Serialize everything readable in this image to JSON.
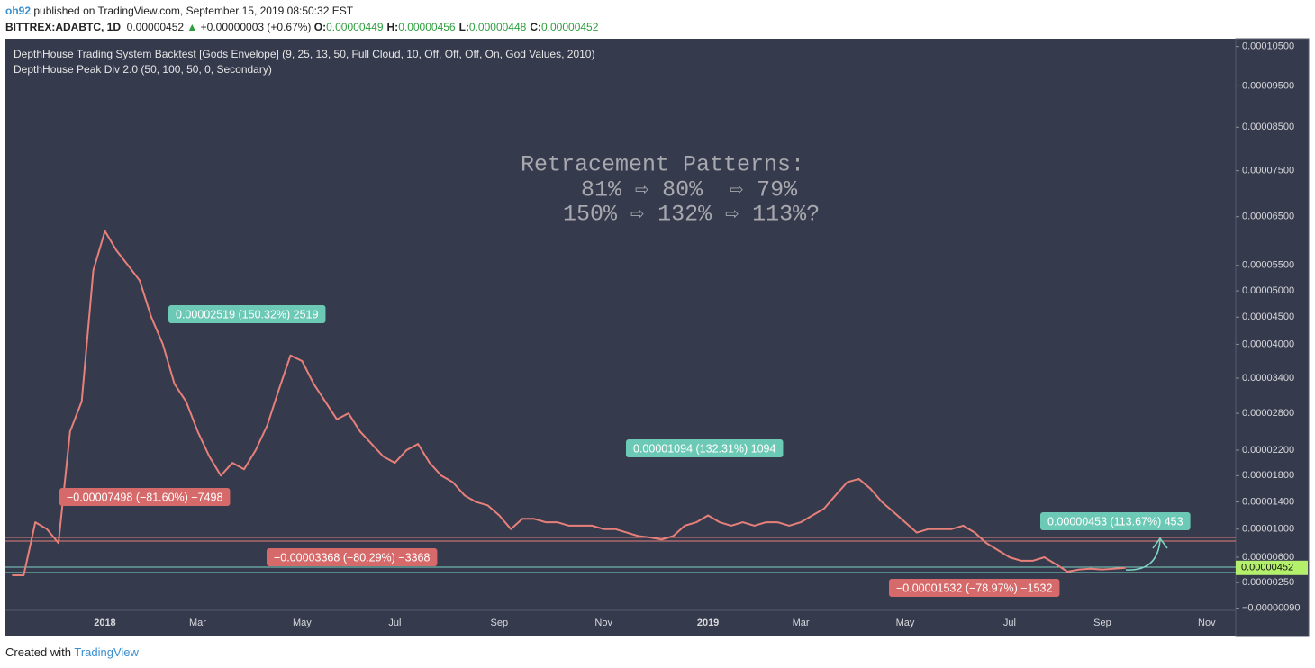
{
  "header": {
    "author": "oh92",
    "published": "published on TradingView.com, September 15, 2019 08:50:32 EST",
    "symbol": "BITTREX:ADABTC, 1D",
    "price": "0.00000452",
    "change": "+0.00000003 (+0.67%)",
    "ohlc": [
      {
        "key": "O:",
        "value": "0.00000449"
      },
      {
        "key": "H:",
        "value": "0.00000456"
      },
      {
        "key": "L:",
        "value": "0.00000448"
      },
      {
        "key": "C:",
        "value": "0.00000452"
      }
    ]
  },
  "footer": {
    "created": "Created with",
    "brand": "TradingView"
  },
  "chart_data": {
    "type": "line",
    "indicators": [
      "DepthHouse Trading System Backtest [Gods Envelope] (9, 25, 13, 50, Full Cloud, 10, Off, Off, Off, On, God Values, 2010)",
      "DepthHouse Peak Div 2.0 (50, 100, 50, 0, Secondary)"
    ],
    "notes": [
      "Retracement Patterns:",
      "81% ⇨ 80%  ⇨ 79%",
      "150% ⇨ 132% ⇨ 113%?"
    ],
    "annotations": [
      {
        "text": "0.00002519 (150.32%) 2519",
        "color": "#6cc9b5"
      },
      {
        "text": "−0.00007498 (−81.60%) −7498",
        "color": "#d66a6a"
      },
      {
        "text": "−0.00003368 (−80.29%) −3368",
        "color": "#d66a6a"
      },
      {
        "text": "0.00001094 (132.31%) 1094",
        "color": "#6cc9b5"
      },
      {
        "text": "0.00000453 (113.67%) 453",
        "color": "#6cc9b5"
      },
      {
        "text": "−0.00001532 (−78.97%) −1532",
        "color": "#d66a6a"
      }
    ],
    "categories": [
      null,
      null,
      null,
      null,
      null,
      null,
      null,
      null,
      "2018",
      null,
      null,
      null,
      null,
      null,
      null,
      null,
      "Mar",
      null,
      null,
      null,
      null,
      null,
      null,
      null,
      null,
      "May",
      null,
      null,
      null,
      null,
      null,
      null,
      null,
      "Jul",
      null,
      null,
      null,
      null,
      null,
      null,
      null,
      null,
      "Sep",
      null,
      null,
      null,
      null,
      null,
      null,
      null,
      null,
      "Nov",
      null,
      null,
      null,
      null,
      null,
      null,
      null,
      null,
      "2019",
      null,
      null,
      null,
      null,
      null,
      null,
      null,
      "Mar",
      null,
      null,
      null,
      null,
      null,
      null,
      null,
      null,
      "May",
      null,
      null,
      null,
      null,
      null,
      null,
      null,
      null,
      "Jul",
      null,
      null,
      null,
      null,
      null,
      null,
      null,
      "Sep",
      null,
      null,
      null,
      null,
      null,
      null,
      null,
      null,
      "Nov",
      null,
      null
    ],
    "series": [
      {
        "name": "ADABTC",
        "color": "#e7807a",
        "values": [
          3.5e-06,
          3.5e-06,
          1.1e-05,
          1e-05,
          8e-06,
          2.5e-05,
          3e-05,
          5.4e-05,
          6.2e-05,
          5.8e-05,
          5.5e-05,
          5.2e-05,
          4.5e-05,
          4e-05,
          3.3e-05,
          3e-05,
          2.5e-05,
          2.1e-05,
          1.8e-05,
          2e-05,
          1.9e-05,
          2.2e-05,
          2.6e-05,
          3.2e-05,
          3.8e-05,
          3.7e-05,
          3.3e-05,
          3e-05,
          2.7e-05,
          2.8e-05,
          2.5e-05,
          2.3e-05,
          2.1e-05,
          2e-05,
          2.2e-05,
          2.3e-05,
          2e-05,
          1.8e-05,
          1.7e-05,
          1.5e-05,
          1.4e-05,
          1.35e-05,
          1.2e-05,
          1e-05,
          1.15e-05,
          1.15e-05,
          1.1e-05,
          1.1e-05,
          1.05e-05,
          1.05e-05,
          1.05e-05,
          1e-05,
          1e-05,
          9.5e-06,
          9e-06,
          8.8e-06,
          8.5e-06,
          9e-06,
          1.05e-05,
          1.1e-05,
          1.2e-05,
          1.1e-05,
          1.05e-05,
          1.1e-05,
          1.05e-05,
          1.1e-05,
          1.1e-05,
          1.05e-05,
          1.1e-05,
          1.2e-05,
          1.3e-05,
          1.5e-05,
          1.7e-05,
          1.75e-05,
          1.6e-05,
          1.4e-05,
          1.25e-05,
          1.1e-05,
          9.5e-06,
          1e-05,
          1e-05,
          1e-05,
          1.05e-05,
          9.5e-06,
          8e-06,
          7e-06,
          6e-06,
          5.5e-06,
          5.5e-06,
          6e-06,
          5e-06,
          4e-06,
          4.3e-06,
          4.4e-06,
          4.3e-06,
          4.4e-06,
          4.52e-06,
          null,
          null,
          null,
          null,
          null,
          null,
          null,
          null,
          null
        ]
      }
    ],
    "last_price": {
      "value": 4.52e-06,
      "label": "0.00000452",
      "color": "#b4f06c"
    },
    "ylim": [
      -1.2e-06,
      0.0001068
    ],
    "yticks": [
      {
        "value": 0.000105,
        "label": "0.00010500"
      },
      {
        "value": 9.5e-05,
        "label": "0.00009500"
      },
      {
        "value": 8.5e-05,
        "label": "0.00008500"
      },
      {
        "value": 7.5e-05,
        "label": "0.00007500"
      },
      {
        "value": 6.5e-05,
        "label": "0.00006500"
      },
      {
        "value": 5.5e-05,
        "label": "0.00005500"
      },
      {
        "value": 5e-05,
        "label": "0.00005000"
      },
      {
        "value": 4.5e-05,
        "label": "0.00004500"
      },
      {
        "value": 4e-05,
        "label": "0.00004000"
      },
      {
        "value": 3.4e-05,
        "label": "0.00003400"
      },
      {
        "value": 2.8e-05,
        "label": "0.00002800"
      },
      {
        "value": 2.2e-05,
        "label": "0.00002200"
      },
      {
        "value": 1.8e-05,
        "label": "0.00001800"
      },
      {
        "value": 1.4e-05,
        "label": "0.00001400"
      },
      {
        "value": 1e-05,
        "label": "0.00001000"
      },
      {
        "value": 6e-06,
        "label": "0.00000600"
      },
      {
        "value": 2.5e-06,
        "label": "0.00000250"
      },
      {
        "value": -9e-07,
        "label": "−0.00000090"
      }
    ],
    "grid": false
  }
}
